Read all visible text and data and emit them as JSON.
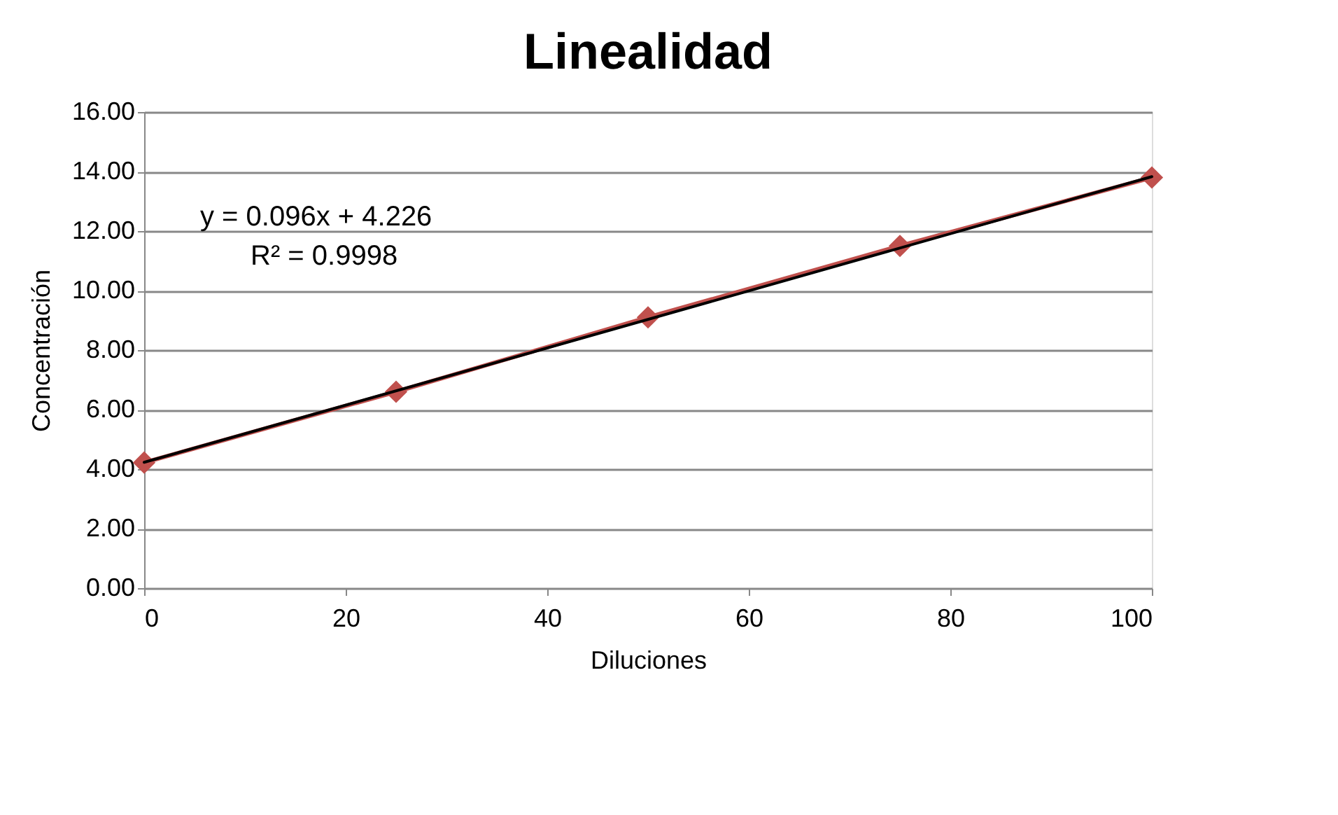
{
  "chart_data": {
    "type": "line",
    "title": "Linealidad",
    "xlabel": "Diluciones",
    "ylabel": "Concentración",
    "x": [
      0,
      25,
      50,
      75,
      100
    ],
    "series": [
      {
        "color": "#c0504d",
        "values": [
          4.22,
          6.6,
          9.1,
          11.5,
          13.8
        ],
        "marker": "diamond"
      },
      {
        "type": "line",
        "color": "#000000",
        "x": [
          0,
          100
        ],
        "values": [
          4.23,
          13.83
        ],
        "marker": "none"
      }
    ],
    "xlim": [
      0,
      100
    ],
    "xticks": [
      0,
      20,
      40,
      60,
      80,
      100
    ],
    "ylim": [
      0,
      16
    ],
    "yticks": [
      {
        "value": 0,
        "label": "0.00"
      },
      {
        "value": 2,
        "label": "2.00"
      },
      {
        "value": 4,
        "label": "4.00"
      },
      {
        "value": 6,
        "label": "6.00"
      },
      {
        "value": 8,
        "label": "8.00"
      },
      {
        "value": 10,
        "label": "10.00"
      },
      {
        "value": 12,
        "label": "12.00"
      },
      {
        "value": 14,
        "label": "14.00"
      },
      {
        "value": 16,
        "label": "16.00"
      }
    ],
    "grid": "y",
    "annotations": [
      "y = 0.096x + 4.226",
      "R² = 0.9998"
    ]
  }
}
